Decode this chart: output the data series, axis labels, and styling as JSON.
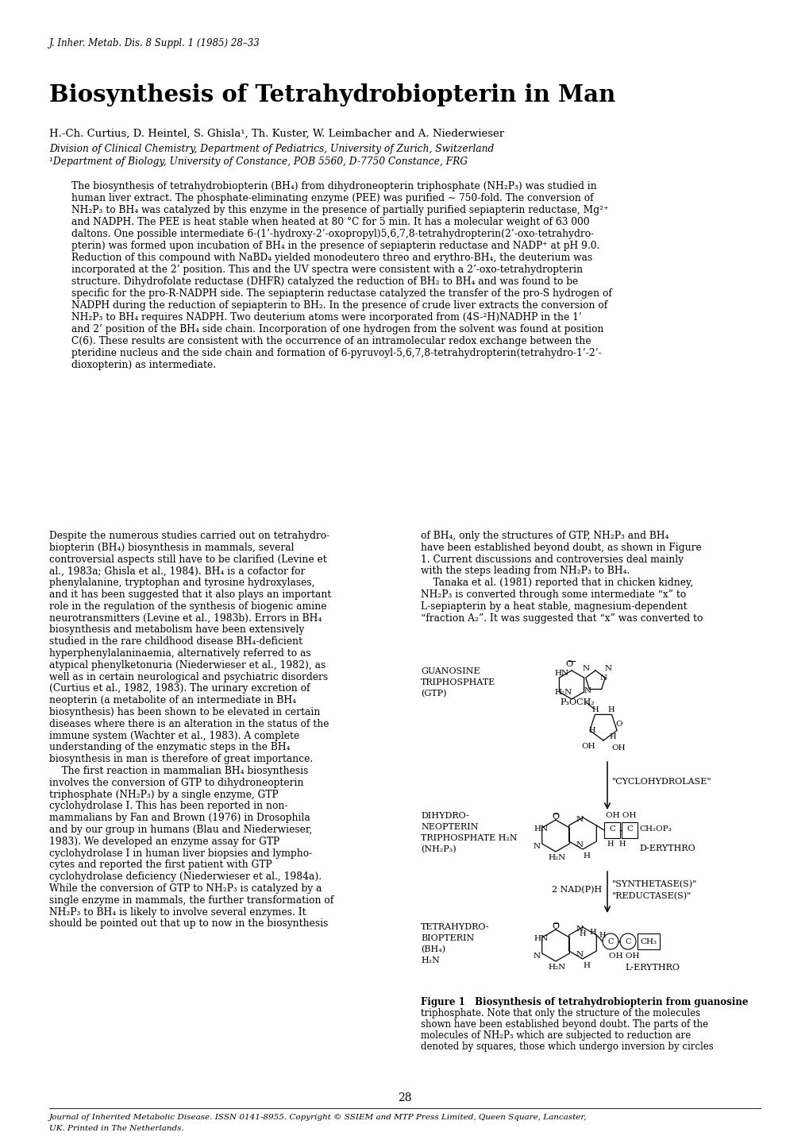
{
  "journal_header": "J. Inher. Metab. Dis. 8 Suppl. 1 (1985) 28–33",
  "title": "Biosynthesis of Tetrahydrobiopterin in Man",
  "authors": "H.-Ch. Curtius, D. Heintel, S. Ghisla¹, Th. Kuster, W. Leimbacher and A. Niederwieser",
  "affil1": "Division of Clinical Chemistry, Department of Pediatrics, University of Zurich, Switzerland",
  "affil2": "¹Department of Biology, University of Constance, POB 5560, D-7750 Constance, FRG",
  "abstract_lines": [
    "The biosynthesis of tetrahydrobiopterin (BH₄) from dihydroneopterin triphosphate (NH₂P₃) was studied in",
    "human liver extract. The phosphate-eliminating enzyme (PEE) was purified ∼ 750-fold. The conversion of",
    "NH₂P₃ to BH₄ was catalyzed by this enzyme in the presence of partially purified sepiapterin reductase, Mg²⁺",
    "and NADPH. The PEE is heat stable when heated at 80 °C for 5 min. It has a molecular weight of 63 000",
    "daltons. One possible intermediate 6-(1’-hydroxy-2’-oxopropyl)5,6,7,8-tetrahydropterin(2’-oxo-tetrahydro-",
    "pterin) was formed upon incubation of BH₄ in the presence of sepiapterin reductase and NADP⁺ at pH 9.0.",
    "Reduction of this compound with NaBD₄ yielded monodeutero threo and erythro-BH₄, the deuterium was",
    "incorporated at the 2’ position. This and the UV spectra were consistent with a 2’-oxo-tetrahydropterin",
    "structure. Dihydrofolate reductase (DHFR) catalyzed the reduction of BH₂ to BH₄ and was found to be",
    "specific for the pro-R-NADPH side. The sepiapterin reductase catalyzed the transfer of the pro-S hydrogen of",
    "NADPH during the reduction of sepiapterin to BH₂. In the presence of crude liver extracts the conversion of",
    "NH₂P₃ to BH₄ requires NADPH. Two deuterium atoms were incorporated from (4S-²H)NADHP in the 1’",
    "and 2’ position of the BH₄ side chain. Incorporation of one hydrogen from the solvent was found at position",
    "C(6). These results are consistent with the occurrence of an intramolecular redox exchange between the",
    "pteridine nucleus and the side chain and formation of 6-pyruvoyl-5,6,7,8-tetrahydropterin(tetrahydro-1’-2’-",
    "dioxopterin) as intermediate."
  ],
  "col1_lines": [
    "Despite the numerous studies carried out on tetrahydro-",
    "biopterin (BH₄) biosynthesis in mammals, several",
    "controversial aspects still have to be clarified (Levine et",
    "al., 1983a; Ghisla et al., 1984). BH₄ is a cofactor for",
    "phenylalanine, tryptophan and tyrosine hydroxylases,",
    "and it has been suggested that it also plays an important",
    "role in the regulation of the synthesis of biogenic amine",
    "neurotransmitters (Levine et al., 1983b). Errors in BH₄",
    "biosynthesis and metabolism have been extensively",
    "studied in the rare childhood disease BH₄-deficient",
    "hyperphenylalaninaemia, alternatively referred to as",
    "atypical phenylketonuria (Niederwieser et al., 1982), as",
    "well as in certain neurological and psychiatric disorders",
    "(Curtius et al., 1982, 1983). The urinary excretion of",
    "neopterin (a metabolite of an intermediate in BH₄",
    "biosynthesis) has been shown to be elevated in certain",
    "diseases where there is an alteration in the status of the",
    "immune system (Wachter et al., 1983). A complete",
    "understanding of the enzymatic steps in the BH₄",
    "biosynthesis in man is therefore of great importance.",
    "    The first reaction in mammalian BH₄ biosynthesis",
    "involves the conversion of GTP to dihydroneopterin",
    "triphosphate (NH₂P₃) by a single enzyme, GTP",
    "cyclohydrolase I. This has been reported in non-",
    "mammalians by Fan and Brown (1976) in Drosophila",
    "and by our group in humans (Blau and Niederwieser,",
    "1983). We developed an enzyme assay for GTP",
    "cyclohydrolase I in human liver biopsies and lympho-",
    "cytes and reported the first patient with GTP",
    "cyclohydrolase deficiency (Niederwieser et al., 1984a).",
    "While the conversion of GTP to NH₂P₃ is catalyzed by a",
    "single enzyme in mammals, the further transformation of",
    "NH₂P₃ to BH₄ is likely to involve several enzymes. It",
    "should be pointed out that up to now in the biosynthesis"
  ],
  "col2_lines": [
    "of BH₄, only the structures of GTP, NH₂P₃ and BH₄",
    "have been established beyond doubt, as shown in Figure",
    "1. Current discussions and controversies deal mainly",
    "with the steps leading from NH₂P₃ to BH₄.",
    "    Tanaka et al. (1981) reported that in chicken kidney,",
    "NH₂P₃ is converted through some intermediate “x” to",
    "L-sepiapterin by a heat stable, magnesium-dependent",
    "“fraction A₂”. It was suggested that “x” was converted to"
  ],
  "fig_caption_lines": [
    "Figure 1   Biosynthesis of tetrahydrobiopterin from guanosine",
    "triphosphate. Note that only the structure of the molecules",
    "shown have been established beyond doubt. The parts of the",
    "molecules of NH₂P₃ which are subjected to reduction are",
    "denoted by squares, those which undergo inversion by circles"
  ],
  "page_number": "28",
  "footer_lines": [
    "Journal of Inherited Metabolic Disease. ISSN 0141-8955. Copyright © SSIEM and MTP Press Limited, Queen Square, Lancaster,",
    "UK. Printed in The Netherlands."
  ],
  "bg_color": "#ffffff",
  "text_color": "#000000"
}
